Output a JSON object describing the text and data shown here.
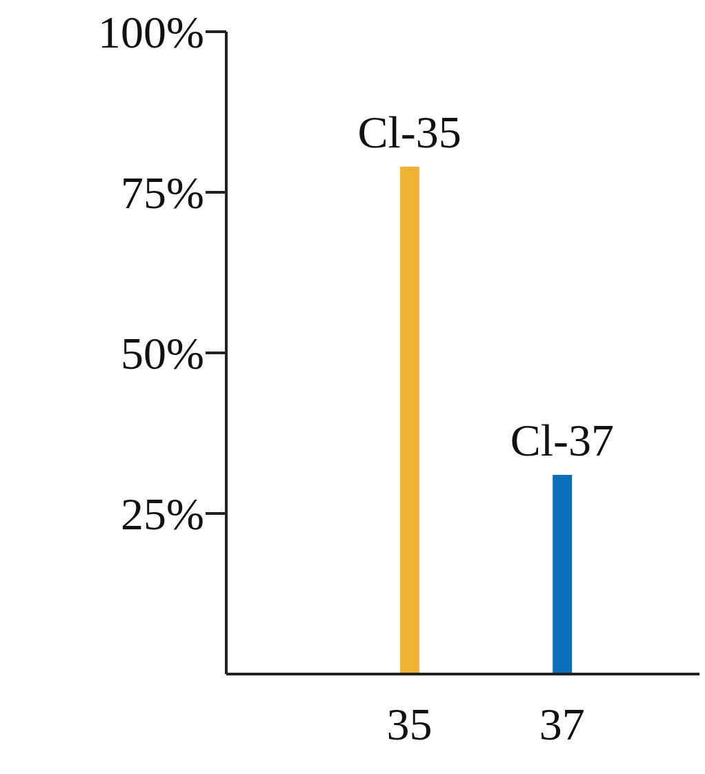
{
  "chart_data": {
    "type": "bar",
    "x": [
      35,
      37
    ],
    "values": [
      79,
      31
    ],
    "colors": [
      "#f0b232",
      "#0a6fba"
    ],
    "xlim": [
      32.6,
      38.8
    ],
    "xticks": [
      35,
      37
    ],
    "ylim": [
      0,
      100
    ],
    "yticks": [
      {
        "value": 25,
        "label": "25%"
      },
      {
        "value": 50,
        "label": "50%"
      },
      {
        "value": 75,
        "label": "75%"
      },
      {
        "value": 100,
        "label": "100%"
      }
    ],
    "annotations": [
      {
        "text": "Cl-35",
        "x": 35,
        "y": 79
      },
      {
        "text": "Cl-37",
        "x": 37,
        "y": 31
      }
    ],
    "grid": false,
    "legend": false
  }
}
